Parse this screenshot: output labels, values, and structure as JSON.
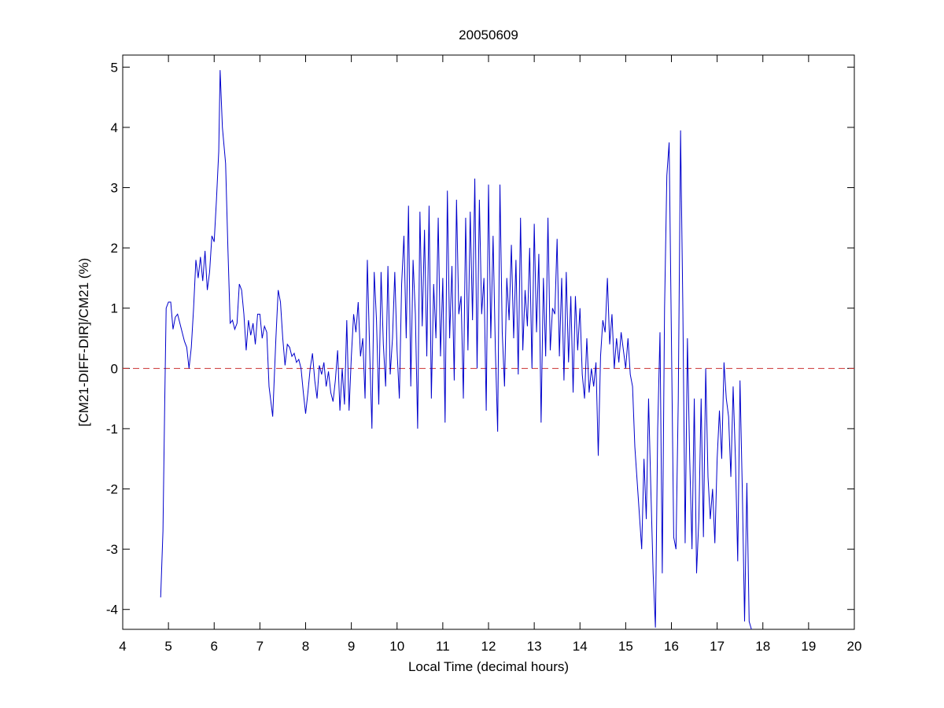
{
  "chart_data": {
    "type": "line",
    "title": "20050609",
    "x_label": "Local Time (decimal hours)",
    "y_label": "[CM21-DIFF-DIR]/CM21 (%)",
    "xlim": [
      4,
      20
    ],
    "ylim": [
      -4.33,
      5.2
    ],
    "xticks": [
      4,
      5,
      6,
      7,
      8,
      9,
      10,
      11,
      12,
      13,
      14,
      15,
      16,
      17,
      18,
      19,
      20
    ],
    "yticks": [
      -4,
      -3,
      -2,
      -1,
      0,
      1,
      2,
      3,
      4,
      5
    ],
    "reference_line": {
      "value": 0,
      "color": "#cc3333"
    },
    "x": [
      4.83,
      4.88,
      4.92,
      4.95,
      5.0,
      5.05,
      5.1,
      5.15,
      5.2,
      5.25,
      5.3,
      5.35,
      5.4,
      5.45,
      5.5,
      5.55,
      5.6,
      5.65,
      5.7,
      5.75,
      5.8,
      5.85,
      5.9,
      5.95,
      6.0,
      6.05,
      6.1,
      6.13,
      6.18,
      6.25,
      6.3,
      6.35,
      6.4,
      6.45,
      6.5,
      6.55,
      6.6,
      6.65,
      6.7,
      6.75,
      6.8,
      6.85,
      6.9,
      6.95,
      7.0,
      7.05,
      7.1,
      7.15,
      7.2,
      7.28,
      7.35,
      7.4,
      7.45,
      7.5,
      7.55,
      7.6,
      7.65,
      7.7,
      7.75,
      7.8,
      7.85,
      7.9,
      7.95,
      8.0,
      8.05,
      8.1,
      8.15,
      8.2,
      8.25,
      8.3,
      8.35,
      8.4,
      8.45,
      8.5,
      8.55,
      8.6,
      8.65,
      8.7,
      8.75,
      8.8,
      8.85,
      8.9,
      8.95,
      9.0,
      9.05,
      9.1,
      9.15,
      9.2,
      9.25,
      9.3,
      9.35,
      9.4,
      9.45,
      9.5,
      9.55,
      9.6,
      9.65,
      9.7,
      9.75,
      9.8,
      9.85,
      9.9,
      9.95,
      10.0,
      10.05,
      10.1,
      10.15,
      10.2,
      10.25,
      10.3,
      10.35,
      10.4,
      10.45,
      10.5,
      10.55,
      10.6,
      10.65,
      10.7,
      10.75,
      10.8,
      10.85,
      10.9,
      10.95,
      11.0,
      11.05,
      11.1,
      11.15,
      11.2,
      11.25,
      11.3,
      11.35,
      11.4,
      11.45,
      11.5,
      11.55,
      11.6,
      11.65,
      11.7,
      11.75,
      11.8,
      11.85,
      11.9,
      11.95,
      12.0,
      12.05,
      12.1,
      12.15,
      12.2,
      12.25,
      12.3,
      12.35,
      12.4,
      12.45,
      12.5,
      12.55,
      12.6,
      12.65,
      12.7,
      12.75,
      12.8,
      12.85,
      12.9,
      12.95,
      13.0,
      13.05,
      13.1,
      13.15,
      13.2,
      13.25,
      13.3,
      13.35,
      13.4,
      13.45,
      13.5,
      13.55,
      13.6,
      13.65,
      13.7,
      13.75,
      13.8,
      13.85,
      13.9,
      13.95,
      14.0,
      14.05,
      14.1,
      14.15,
      14.2,
      14.25,
      14.3,
      14.35,
      14.4,
      14.45,
      14.5,
      14.55,
      14.6,
      14.65,
      14.7,
      14.75,
      14.8,
      14.85,
      14.9,
      14.95,
      15.0,
      15.05,
      15.1,
      15.15,
      15.2,
      15.35,
      15.4,
      15.45,
      15.5,
      15.55,
      15.6,
      15.65,
      15.7,
      15.75,
      15.8,
      15.85,
      15.9,
      15.95,
      16.0,
      16.05,
      16.1,
      16.15,
      16.2,
      16.25,
      16.3,
      16.35,
      16.4,
      16.45,
      16.5,
      16.55,
      16.6,
      16.65,
      16.7,
      16.75,
      16.8,
      16.85,
      16.9,
      16.95,
      17.0,
      17.05,
      17.1,
      17.15,
      17.2,
      17.25,
      17.3,
      17.35,
      17.4,
      17.45,
      17.5,
      17.55,
      17.6,
      17.65,
      17.7,
      17.75
    ],
    "series": [
      {
        "name": "ratio",
        "color": "#0000cc",
        "values": [
          -3.8,
          -2.7,
          -0.5,
          1.0,
          1.1,
          1.1,
          0.65,
          0.85,
          0.9,
          0.75,
          0.6,
          0.45,
          0.35,
          0.0,
          0.35,
          1.0,
          1.8,
          1.5,
          1.85,
          1.45,
          1.95,
          1.3,
          1.6,
          2.2,
          2.1,
          2.8,
          3.6,
          4.95,
          4.0,
          3.4,
          2.0,
          0.75,
          0.8,
          0.65,
          0.75,
          1.4,
          1.3,
          0.9,
          0.3,
          0.8,
          0.55,
          0.75,
          0.4,
          0.9,
          0.9,
          0.5,
          0.7,
          0.6,
          -0.3,
          -0.8,
          0.5,
          1.3,
          1.1,
          0.5,
          0.05,
          0.4,
          0.35,
          0.2,
          0.25,
          0.1,
          0.15,
          0.0,
          -0.4,
          -0.75,
          -0.4,
          0.0,
          0.25,
          -0.2,
          -0.5,
          0.05,
          -0.1,
          0.1,
          -0.3,
          -0.05,
          -0.4,
          -0.55,
          -0.2,
          0.3,
          -0.7,
          0.0,
          -0.6,
          0.8,
          -0.7,
          0.2,
          0.9,
          0.6,
          1.1,
          0.2,
          0.5,
          -0.5,
          1.8,
          0.3,
          -1.0,
          1.6,
          0.8,
          -0.6,
          1.6,
          0.4,
          -0.3,
          1.7,
          -0.1,
          0.5,
          1.6,
          0.3,
          -0.5,
          1.4,
          2.2,
          0.5,
          2.7,
          -0.3,
          1.8,
          0.9,
          -1.0,
          2.6,
          0.7,
          2.3,
          0.2,
          2.7,
          -0.5,
          1.4,
          0.5,
          2.5,
          0.2,
          1.5,
          -0.9,
          2.95,
          0.5,
          1.7,
          -0.2,
          2.8,
          0.9,
          1.2,
          -0.5,
          2.5,
          0.3,
          2.6,
          0.8,
          3.15,
          0.0,
          2.8,
          0.9,
          1.5,
          -0.7,
          3.05,
          0.5,
          2.2,
          0.3,
          -1.05,
          3.05,
          0.6,
          -0.3,
          1.5,
          0.8,
          2.05,
          0.5,
          1.8,
          -0.1,
          2.5,
          0.3,
          1.3,
          0.7,
          2.0,
          0.0,
          2.4,
          0.6,
          1.9,
          -0.9,
          1.5,
          0.2,
          2.5,
          0.3,
          1.0,
          0.9,
          2.15,
          0.2,
          1.5,
          -0.2,
          1.6,
          0.1,
          1.2,
          -0.4,
          1.2,
          0.3,
          1.0,
          -0.1,
          -0.5,
          0.5,
          -0.4,
          0.0,
          -0.3,
          0.1,
          -1.45,
          0.2,
          0.8,
          0.6,
          1.5,
          0.4,
          0.9,
          0.0,
          0.5,
          0.1,
          0.6,
          0.3,
          0.0,
          0.5,
          -0.1,
          -0.3,
          -1.3,
          -3.0,
          -1.5,
          -2.5,
          -0.5,
          -2.0,
          -3.4,
          -4.3,
          -1.0,
          0.6,
          -3.4,
          1.0,
          3.2,
          3.75,
          0.5,
          -2.8,
          -3.0,
          -0.5,
          3.95,
          1.0,
          -2.9,
          0.5,
          -1.5,
          -3.0,
          -0.5,
          -3.4,
          -2.5,
          -0.5,
          -2.8,
          0.0,
          -1.8,
          -2.5,
          -2.0,
          -2.9,
          -1.5,
          -0.7,
          -1.5,
          0.1,
          -0.5,
          -0.8,
          -1.8,
          -0.3,
          -1.5,
          -3.2,
          -0.2,
          -2.0,
          -4.2,
          -1.9,
          -4.2,
          -4.33
        ]
      }
    ]
  }
}
